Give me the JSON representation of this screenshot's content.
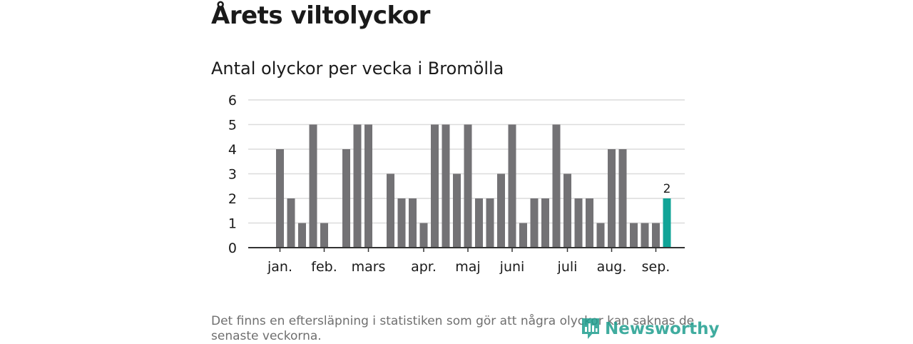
{
  "header": {
    "title": "Årets viltolyckor"
  },
  "chart_data": {
    "type": "bar",
    "title": "Antal olyckor per vecka i Bromölla",
    "xlabel": "",
    "ylabel": "",
    "ylim": [
      0,
      6
    ],
    "yticks": [
      0,
      1,
      2,
      3,
      4,
      5,
      6
    ],
    "grid": true,
    "month_labels": [
      "jan.",
      "feb.",
      "mars",
      "apr.",
      "maj",
      "juni",
      "juli",
      "aug.",
      "sep."
    ],
    "month_label_week_index": [
      1,
      5,
      9,
      14,
      18,
      22,
      27,
      31,
      35
    ],
    "values": [
      0,
      4,
      2,
      1,
      5,
      1,
      0,
      4,
      5,
      5,
      0,
      3,
      2,
      2,
      1,
      5,
      5,
      3,
      5,
      2,
      2,
      3,
      5,
      1,
      2,
      2,
      5,
      3,
      2,
      2,
      1,
      4,
      4,
      1,
      1,
      1,
      2
    ],
    "highlight_index": 36,
    "highlight_label": "2",
    "colors": {
      "bar": "#737275",
      "highlight": "#10a497",
      "grid": "#dcdcdc",
      "axis": "#333333"
    }
  },
  "footer": {
    "note": "Det finns en eftersläpning i statistiken som gör att några olyckor kan saknas de senaste veckorna.",
    "logo_text": "Newsworthy"
  }
}
